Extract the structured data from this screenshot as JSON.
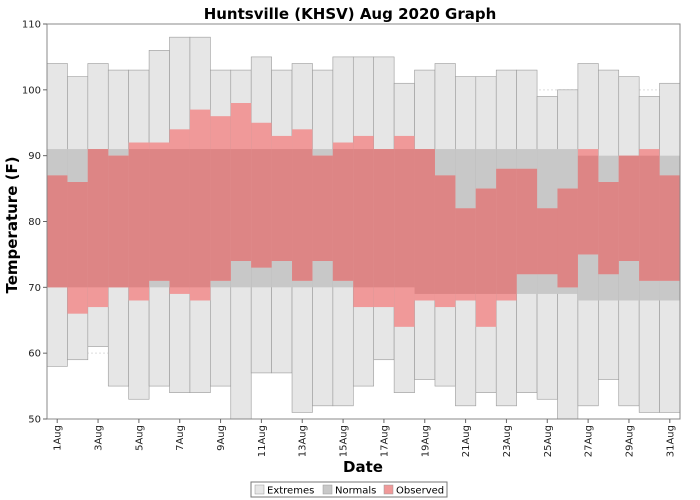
{
  "chart_data": {
    "type": "bar",
    "title": "Huntsville (KHSV) Aug 2020 Graph",
    "xlabel": "Date",
    "ylabel": "Temperature (F)",
    "ylim": [
      50,
      110
    ],
    "yticks": [
      50,
      60,
      70,
      80,
      90,
      100,
      110
    ],
    "grid": true,
    "legend_position": "bottom",
    "categories": [
      "1Aug",
      "2Aug",
      "3Aug",
      "4Aug",
      "5Aug",
      "6Aug",
      "7Aug",
      "8Aug",
      "9Aug",
      "10Aug",
      "11Aug",
      "12Aug",
      "13Aug",
      "14Aug",
      "15Aug",
      "16Aug",
      "17Aug",
      "18Aug",
      "19Aug",
      "20Aug",
      "21Aug",
      "22Aug",
      "23Aug",
      "24Aug",
      "25Aug",
      "26Aug",
      "27Aug",
      "28Aug",
      "29Aug",
      "30Aug",
      "31Aug"
    ],
    "tick_labels": [
      "1Aug",
      "3Aug",
      "5Aug",
      "7Aug",
      "9Aug",
      "11Aug",
      "13Aug",
      "15Aug",
      "17Aug",
      "19Aug",
      "21Aug",
      "23Aug",
      "25Aug",
      "27Aug",
      "29Aug",
      "31Aug"
    ],
    "series": [
      {
        "name": "Extremes",
        "color": "#e6e6e6",
        "edge": "#9a9a9a",
        "low": [
          58,
          59,
          61,
          55,
          53,
          55,
          54,
          54,
          55,
          50,
          57,
          57,
          51,
          52,
          52,
          55,
          59,
          54,
          56,
          55,
          52,
          54,
          52,
          54,
          53,
          50,
          52,
          56,
          52,
          51,
          51
        ],
        "high": [
          104,
          102,
          104,
          103,
          103,
          106,
          108,
          108,
          103,
          103,
          105,
          103,
          104,
          103,
          105,
          105,
          105,
          101,
          103,
          104,
          102,
          102,
          103,
          103,
          99,
          100,
          104,
          103,
          102,
          99,
          101
        ]
      },
      {
        "name": "Normals",
        "color": "#c8c8c8",
        "edge": "#9a9a9a",
        "low": [
          70,
          70,
          70,
          70,
          70,
          70,
          70,
          70,
          70,
          70,
          70,
          70,
          70,
          70,
          70,
          70,
          70,
          70,
          69,
          69,
          69,
          69,
          69,
          69,
          69,
          69,
          68,
          68,
          68,
          68,
          68
        ],
        "high": [
          91,
          91,
          91,
          91,
          91,
          91,
          91,
          91,
          91,
          91,
          91,
          91,
          91,
          91,
          91,
          91,
          91,
          91,
          91,
          91,
          91,
          91,
          91,
          91,
          91,
          91,
          90,
          90,
          90,
          90,
          90
        ]
      },
      {
        "name": "Observed",
        "color": "#f09999",
        "edge": "#e07a7a",
        "low": [
          70,
          66,
          67,
          70,
          68,
          71,
          69,
          68,
          71,
          74,
          73,
          74,
          71,
          74,
          71,
          67,
          67,
          64,
          68,
          67,
          68,
          64,
          68,
          72,
          72,
          70,
          75,
          72,
          74,
          71,
          71
        ],
        "high": [
          87,
          86,
          91,
          90,
          92,
          92,
          94,
          97,
          96,
          98,
          95,
          93,
          94,
          90,
          92,
          93,
          91,
          93,
          91,
          87,
          82,
          85,
          88,
          88,
          82,
          85,
          91,
          86,
          90,
          91,
          87
        ]
      }
    ]
  }
}
